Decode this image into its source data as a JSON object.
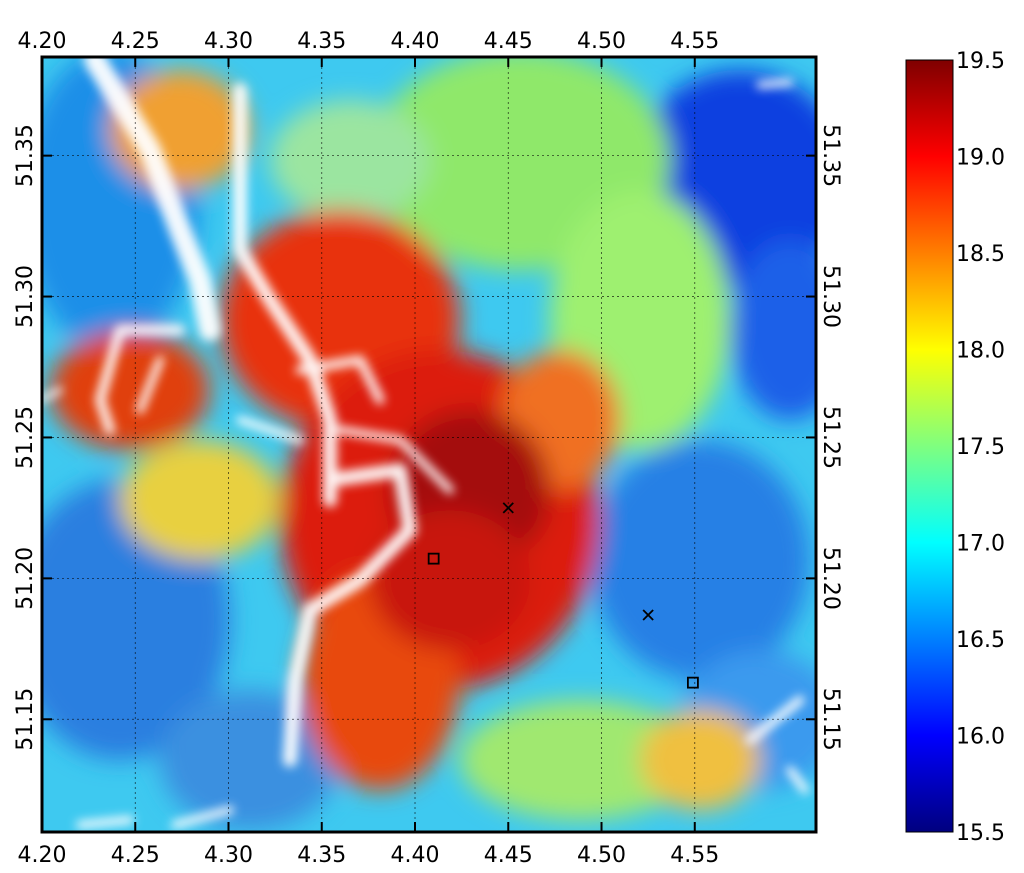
{
  "map": {
    "lon_ticks_top": [
      "4.20",
      "4.25",
      "4.30",
      "4.35",
      "4.40",
      "4.45",
      "4.50",
      "4.55"
    ],
    "lon_ticks_bottom": [
      "4.20",
      "4.25",
      "4.30",
      "4.35",
      "4.40",
      "4.45",
      "4.50",
      "4.55"
    ],
    "lat_ticks_left": [
      "51.35",
      "51.30",
      "51.25",
      "51.20",
      "51.15"
    ],
    "lat_ticks_right": [
      "51.35",
      "51.30",
      "51.25",
      "51.20",
      "51.15"
    ],
    "lon_range": [
      4.2,
      4.615
    ],
    "lat_range": [
      51.11,
      51.385
    ],
    "grid": true,
    "markers": [
      {
        "symbol": "x",
        "lon": 4.45,
        "lat": 51.225
      },
      {
        "symbol": "square",
        "lon": 4.41,
        "lat": 51.207
      },
      {
        "symbol": "x",
        "lon": 4.525,
        "lat": 51.187
      },
      {
        "symbol": "square",
        "lon": 4.549,
        "lat": 51.163
      }
    ]
  },
  "colorbar": {
    "min": 15.5,
    "max": 19.5,
    "ticks": [
      "19.5",
      "19.0",
      "18.5",
      "18.0",
      "17.5",
      "17.0",
      "16.5",
      "16.0",
      "15.5"
    ],
    "colors": [
      "#00007f",
      "#0000ff",
      "#007fff",
      "#00ffff",
      "#7fff7f",
      "#ffff00",
      "#ff7f00",
      "#ff0000",
      "#7f0000"
    ]
  }
}
